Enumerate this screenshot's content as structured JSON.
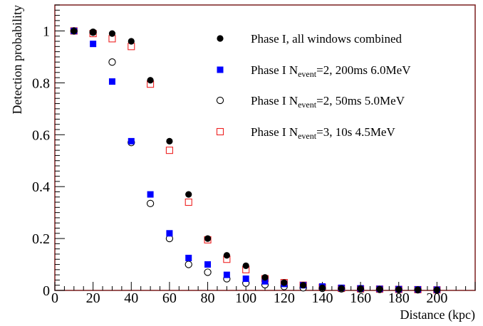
{
  "chart_data": {
    "type": "scatter",
    "title": "",
    "xlabel": "Distance (kpc)",
    "ylabel": "Detection probability",
    "xlim": [
      0,
      220
    ],
    "ylim": [
      0,
      1.1
    ],
    "x_ticks": [
      "0",
      "20",
      "40",
      "60",
      "80",
      "100",
      "120",
      "140",
      "160",
      "180",
      "200"
    ],
    "y_ticks": [
      "0",
      "0.2",
      "0.4",
      "0.6",
      "0.8",
      "1"
    ],
    "grid": false,
    "legend_position": "top-right",
    "x": [
      10,
      20,
      30,
      40,
      50,
      60,
      70,
      80,
      90,
      100,
      110,
      120,
      130,
      140,
      150,
      160,
      170,
      180,
      190,
      200
    ],
    "series": [
      {
        "name": "Phase I, all windows combined",
        "marker": "filled-circle",
        "color": "#000000",
        "values": [
          1.0,
          0.995,
          0.99,
          0.96,
          0.81,
          0.575,
          0.37,
          0.2,
          0.135,
          0.095,
          0.05,
          0.03,
          0.02,
          0.01,
          0.008,
          0.007,
          0.005,
          0.004,
          0.003,
          0.002
        ]
      },
      {
        "name_main": "Phase I N",
        "name_sub": "event",
        "name_rest": "=2, 200ms 6.0MeV",
        "marker": "filled-square",
        "color": "#0000ff",
        "values": [
          1.0,
          0.95,
          0.805,
          0.575,
          0.37,
          0.22,
          0.125,
          0.1,
          0.06,
          0.045,
          0.035,
          0.025,
          0.02,
          0.015,
          0.01,
          0.008,
          0.006,
          0.005,
          0.004,
          0.003
        ]
      },
      {
        "name_main": "Phase I N",
        "name_sub": "event",
        "name_rest": "=2, 50ms 5.0MeV",
        "marker": "open-circle",
        "color": "#000000",
        "values": [
          1.0,
          0.995,
          0.88,
          0.57,
          0.335,
          0.2,
          0.1,
          0.07,
          0.045,
          0.028,
          0.022,
          0.015,
          0.01,
          0.008,
          0.006,
          0.005,
          0.004,
          0.003,
          0.002,
          0.001
        ]
      },
      {
        "name_main": "Phase I N",
        "name_sub": "event",
        "name_rest": "=3, 10s 4.5MeV",
        "marker": "open-square",
        "color": "#ee2222",
        "values": [
          1.0,
          0.99,
          0.97,
          0.94,
          0.795,
          0.54,
          0.34,
          0.195,
          0.12,
          0.08,
          0.045,
          0.03,
          0.02,
          0.012,
          0.008,
          0.006,
          0.005,
          0.004,
          0.003,
          0.002
        ]
      }
    ]
  }
}
